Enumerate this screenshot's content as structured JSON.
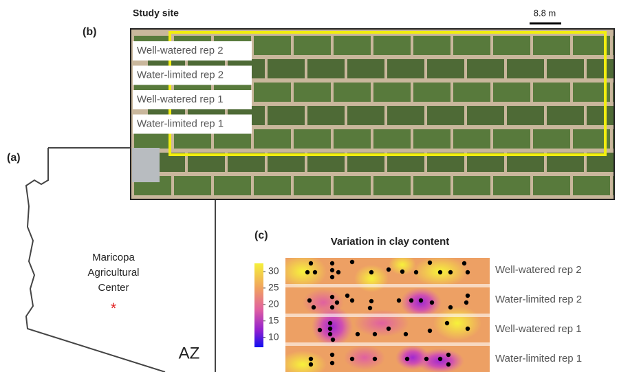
{
  "panel_a": {
    "label": "(a)",
    "site_lines": [
      "Maricopa",
      "Agricultural",
      "Center"
    ],
    "state": "AZ"
  },
  "panel_b": {
    "label": "(b)",
    "title": "Study site",
    "scale": "8.8 m",
    "rows": [
      "Well-watered rep 2",
      "Water-limited rep 2",
      "Well-watered rep 1",
      "Water-limited rep 1"
    ]
  },
  "panel_c": {
    "label": "(c)",
    "title": "Variation in clay content",
    "colorbar": {
      "lim": [
        7,
        32.5
      ],
      "ticks": [
        10,
        15,
        20,
        25,
        30
      ]
    },
    "rows": [
      "Well-watered rep 2",
      "Water-limited rep 2",
      "Well-watered rep 1",
      "Water-limited rep 1"
    ]
  }
}
